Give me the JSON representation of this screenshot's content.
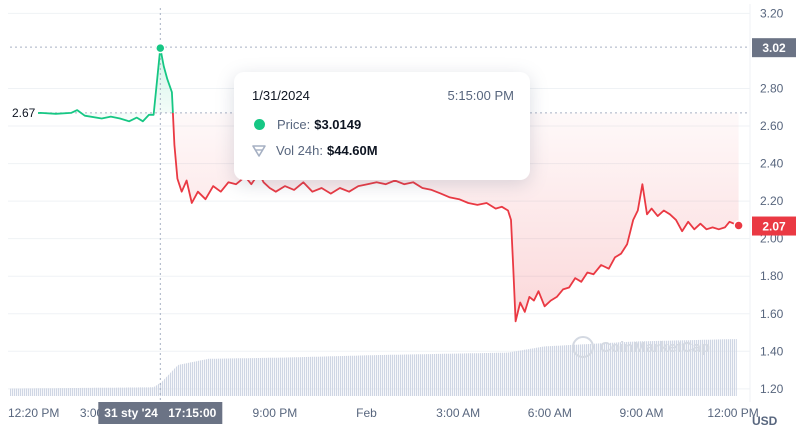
{
  "chart_data": {
    "type": "line",
    "currency_label": "USD",
    "y_ticks": [
      "3.20",
      "2.80",
      "2.60",
      "2.40",
      "2.20",
      "2.00",
      "1.80",
      "1.60",
      "1.40",
      "1.20"
    ],
    "ylim": [
      1.13,
      3.25
    ],
    "x_ticks": [
      {
        "label": "12:20 PM",
        "h": 0
      },
      {
        "label": "3:00",
        "h": 2.67
      },
      {
        "label": "9:00 PM",
        "h": 8.67
      },
      {
        "label": "Feb",
        "h": 11.67
      },
      {
        "label": "3:00 AM",
        "h": 14.67
      },
      {
        "label": "6:00 AM",
        "h": 17.67
      },
      {
        "label": "9:00 AM",
        "h": 20.67
      },
      {
        "label": "12:00 PM",
        "h": 23.67
      }
    ],
    "crosshair": {
      "date_label": "31 sty '24",
      "time_label": "17:15:00",
      "h": 4.92
    },
    "reference_price": {
      "label": "2.67",
      "value": 2.67
    },
    "hover_price": {
      "label": "3.02",
      "value": 3.02
    },
    "last_price": {
      "label": "2.07",
      "value": 2.07
    },
    "colors": {
      "up": "#16c784",
      "down": "#ea3943",
      "grid": "#eff2f5",
      "volume": "#cfd6e4",
      "badge_grey": "#6b7385"
    },
    "price_series": [
      {
        "h": 0.0,
        "v": 2.67
      },
      {
        "h": 0.5,
        "v": 2.665
      },
      {
        "h": 1.0,
        "v": 2.67
      },
      {
        "h": 1.5,
        "v": 2.665
      },
      {
        "h": 2.0,
        "v": 2.67
      },
      {
        "h": 2.2,
        "v": 2.685
      },
      {
        "h": 2.45,
        "v": 2.655
      },
      {
        "h": 3.0,
        "v": 2.64
      },
      {
        "h": 3.3,
        "v": 2.65
      },
      {
        "h": 3.6,
        "v": 2.64
      },
      {
        "h": 3.9,
        "v": 2.625
      },
      {
        "h": 4.15,
        "v": 2.645
      },
      {
        "h": 4.35,
        "v": 2.625
      },
      {
        "h": 4.55,
        "v": 2.66
      },
      {
        "h": 4.7,
        "v": 2.66
      },
      {
        "h": 4.92,
        "v": 3.015
      },
      {
        "h": 5.03,
        "v": 2.92
      },
      {
        "h": 5.15,
        "v": 2.85
      },
      {
        "h": 5.3,
        "v": 2.78
      },
      {
        "h": 5.38,
        "v": 2.5
      },
      {
        "h": 5.48,
        "v": 2.32
      },
      {
        "h": 5.62,
        "v": 2.25
      },
      {
        "h": 5.78,
        "v": 2.31
      },
      {
        "h": 5.95,
        "v": 2.19
      },
      {
        "h": 6.15,
        "v": 2.25
      },
      {
        "h": 6.4,
        "v": 2.21
      },
      {
        "h": 6.65,
        "v": 2.28
      },
      {
        "h": 6.9,
        "v": 2.25
      },
      {
        "h": 7.15,
        "v": 2.3
      },
      {
        "h": 7.4,
        "v": 2.29
      },
      {
        "h": 7.7,
        "v": 2.33
      },
      {
        "h": 7.9,
        "v": 2.29
      },
      {
        "h": 8.15,
        "v": 2.35
      },
      {
        "h": 8.3,
        "v": 2.3
      },
      {
        "h": 8.5,
        "v": 2.27
      },
      {
        "h": 8.7,
        "v": 2.25
      },
      {
        "h": 9.0,
        "v": 2.28
      },
      {
        "h": 9.3,
        "v": 2.26
      },
      {
        "h": 9.6,
        "v": 2.3
      },
      {
        "h": 9.9,
        "v": 2.25
      },
      {
        "h": 10.2,
        "v": 2.27
      },
      {
        "h": 10.5,
        "v": 2.24
      },
      {
        "h": 10.8,
        "v": 2.27
      },
      {
        "h": 11.1,
        "v": 2.25
      },
      {
        "h": 11.4,
        "v": 2.28
      },
      {
        "h": 11.7,
        "v": 2.29
      },
      {
        "h": 12.0,
        "v": 2.3
      },
      {
        "h": 12.3,
        "v": 2.29
      },
      {
        "h": 12.6,
        "v": 2.31
      },
      {
        "h": 12.9,
        "v": 2.29
      },
      {
        "h": 13.2,
        "v": 2.3
      },
      {
        "h": 13.5,
        "v": 2.27
      },
      {
        "h": 13.8,
        "v": 2.26
      },
      {
        "h": 14.1,
        "v": 2.24
      },
      {
        "h": 14.4,
        "v": 2.22
      },
      {
        "h": 14.7,
        "v": 2.21
      },
      {
        "h": 15.0,
        "v": 2.19
      },
      {
        "h": 15.3,
        "v": 2.18
      },
      {
        "h": 15.6,
        "v": 2.19
      },
      {
        "h": 15.9,
        "v": 2.16
      },
      {
        "h": 16.1,
        "v": 2.17
      },
      {
        "h": 16.3,
        "v": 2.15
      },
      {
        "h": 16.4,
        "v": 2.1
      },
      {
        "h": 16.47,
        "v": 1.85
      },
      {
        "h": 16.55,
        "v": 1.56
      },
      {
        "h": 16.7,
        "v": 1.66
      },
      {
        "h": 16.85,
        "v": 1.61
      },
      {
        "h": 17.0,
        "v": 1.69
      },
      {
        "h": 17.15,
        "v": 1.67
      },
      {
        "h": 17.3,
        "v": 1.72
      },
      {
        "h": 17.5,
        "v": 1.64
      },
      {
        "h": 17.7,
        "v": 1.67
      },
      {
        "h": 17.9,
        "v": 1.69
      },
      {
        "h": 18.1,
        "v": 1.73
      },
      {
        "h": 18.3,
        "v": 1.74
      },
      {
        "h": 18.5,
        "v": 1.79
      },
      {
        "h": 18.7,
        "v": 1.77
      },
      {
        "h": 18.9,
        "v": 1.82
      },
      {
        "h": 19.1,
        "v": 1.81
      },
      {
        "h": 19.35,
        "v": 1.86
      },
      {
        "h": 19.6,
        "v": 1.84
      },
      {
        "h": 19.8,
        "v": 1.9
      },
      {
        "h": 20.0,
        "v": 1.92
      },
      {
        "h": 20.2,
        "v": 1.97
      },
      {
        "h": 20.4,
        "v": 2.1
      },
      {
        "h": 20.55,
        "v": 2.15
      },
      {
        "h": 20.7,
        "v": 2.29
      },
      {
        "h": 20.85,
        "v": 2.13
      },
      {
        "h": 21.0,
        "v": 2.16
      },
      {
        "h": 21.2,
        "v": 2.12
      },
      {
        "h": 21.4,
        "v": 2.15
      },
      {
        "h": 21.6,
        "v": 2.13
      },
      {
        "h": 21.8,
        "v": 2.1
      },
      {
        "h": 22.0,
        "v": 2.04
      },
      {
        "h": 22.2,
        "v": 2.09
      },
      {
        "h": 22.4,
        "v": 2.05
      },
      {
        "h": 22.6,
        "v": 2.08
      },
      {
        "h": 22.8,
        "v": 2.05
      },
      {
        "h": 23.0,
        "v": 2.06
      },
      {
        "h": 23.2,
        "v": 2.05
      },
      {
        "h": 23.4,
        "v": 2.06
      },
      {
        "h": 23.55,
        "v": 2.09
      },
      {
        "h": 23.7,
        "v": 2.08
      },
      {
        "h": 23.85,
        "v": 2.07
      }
    ],
    "volume_profile": [
      {
        "h": 0.0,
        "r": 0.12
      },
      {
        "h": 4.7,
        "r": 0.14
      },
      {
        "h": 4.95,
        "r": 0.22
      },
      {
        "h": 5.5,
        "r": 0.5
      },
      {
        "h": 6.5,
        "r": 0.6
      },
      {
        "h": 9.0,
        "r": 0.62
      },
      {
        "h": 12.0,
        "r": 0.66
      },
      {
        "h": 16.3,
        "r": 0.7
      },
      {
        "h": 17.5,
        "r": 0.8
      },
      {
        "h": 20.5,
        "r": 0.88
      },
      {
        "h": 23.85,
        "r": 0.92
      }
    ]
  },
  "tooltip": {
    "date": "1/31/2024",
    "time": "5:15:00 PM",
    "price_key": "Price:",
    "price_value": "$3.0149",
    "vol_key": "Vol 24h:",
    "vol_value": "$44.60M"
  },
  "watermark": "CoinMarketCap"
}
